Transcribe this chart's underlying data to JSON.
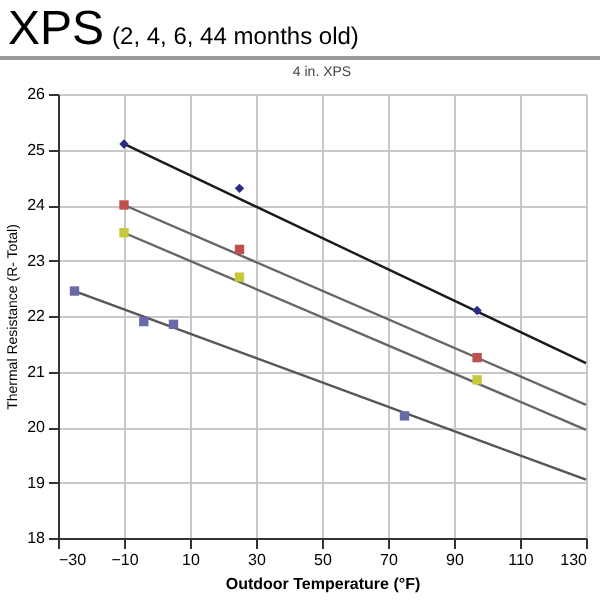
{
  "chart_data": {
    "type": "scatter",
    "title": "XPS",
    "subtitle": "(2, 4, 6, 44 months old)",
    "annotations": [
      "4 in. XPS"
    ],
    "xlabel": "Outdoor Temperature (°F)",
    "ylabel": "Thermal Resistance (R- Total)",
    "xlim": [
      -30,
      130
    ],
    "xticks": [
      -30,
      -10,
      10,
      30,
      50,
      70,
      90,
      110,
      130
    ],
    "ylim": [
      18,
      26
    ],
    "yticks": [
      18,
      19,
      20,
      21,
      22,
      23,
      24,
      25,
      26
    ],
    "grid": true,
    "series": [
      {
        "type": "line",
        "color": "#1a1a1a",
        "x": [
          -10,
          130
        ],
        "values": [
          25.1,
          21.15
        ],
        "marker": "none"
      },
      {
        "type": "line",
        "color": "#666666",
        "x": [
          -10,
          130
        ],
        "values": [
          24.0,
          20.4
        ],
        "marker": "none"
      },
      {
        "type": "line",
        "color": "#666666",
        "x": [
          -10,
          130
        ],
        "values": [
          23.5,
          19.95
        ],
        "marker": "none"
      },
      {
        "type": "line",
        "color": "#555555",
        "x": [
          -25,
          130
        ],
        "values": [
          22.45,
          19.05
        ],
        "marker": "none"
      },
      {
        "color": "#2a2a80",
        "x": [
          -10,
          25,
          97
        ],
        "values": [
          25.1,
          24.3,
          22.1
        ],
        "marker": "diamond"
      },
      {
        "color": "#c0504d",
        "x": [
          -10,
          25,
          97
        ],
        "values": [
          24.0,
          23.2,
          21.25
        ],
        "marker": "square"
      },
      {
        "color": "#c8c83c",
        "x": [
          -10,
          25,
          97
        ],
        "values": [
          23.5,
          22.7,
          20.85
        ],
        "marker": "square"
      },
      {
        "color": "#6a6aa8",
        "x": [
          -25,
          -4,
          5,
          75
        ],
        "values": [
          22.45,
          21.9,
          21.85,
          20.2
        ],
        "marker": "square"
      }
    ]
  }
}
